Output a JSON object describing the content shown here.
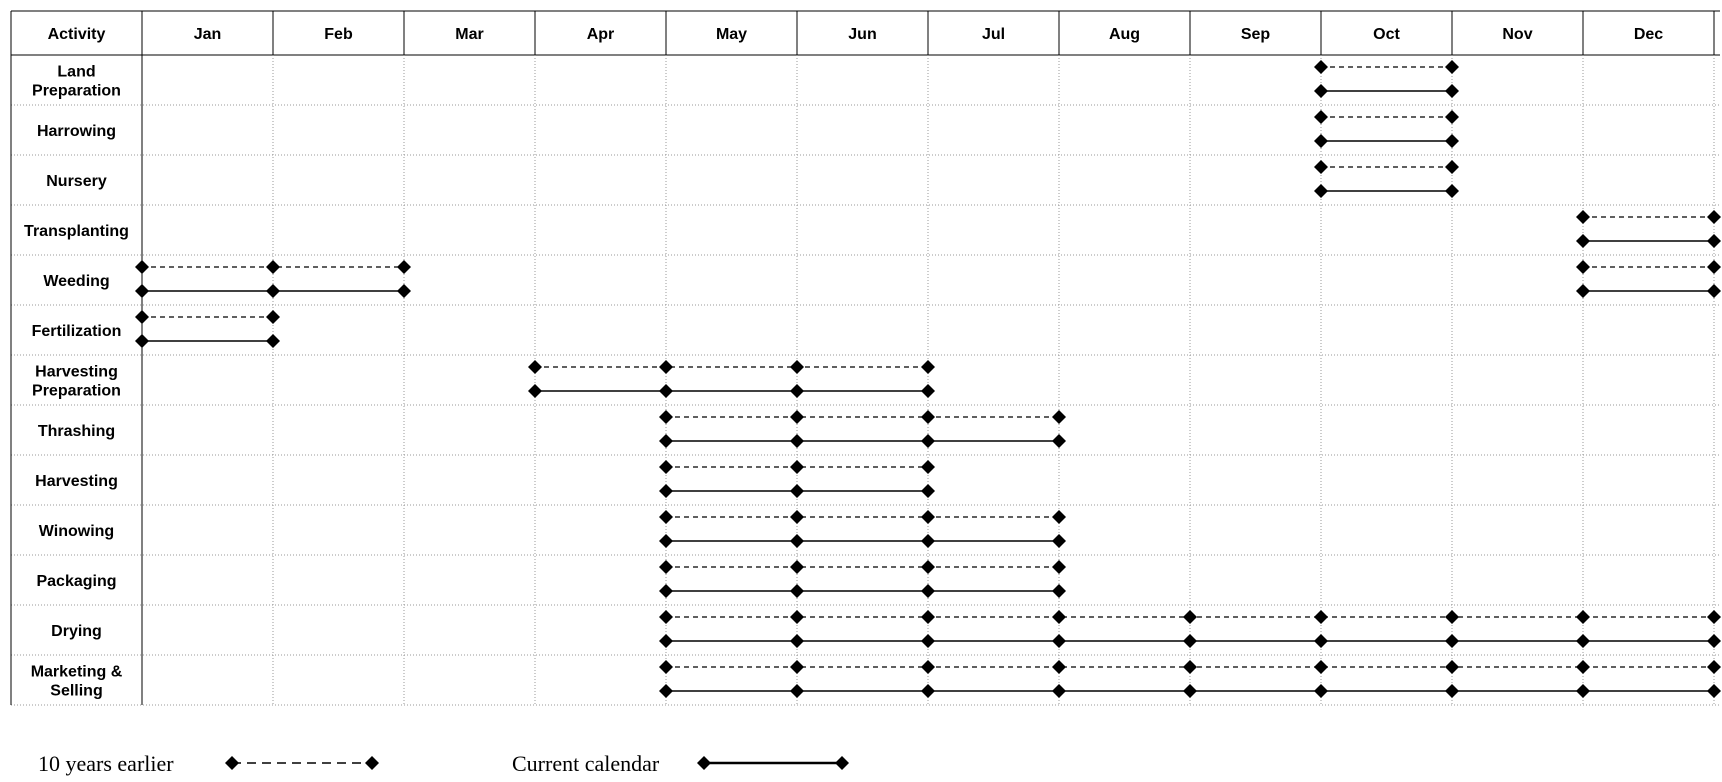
{
  "header": {
    "activity_label": "Activity",
    "months": [
      "Jan",
      "Feb",
      "Mar",
      "Apr",
      "May",
      "Jun",
      "Jul",
      "Aug",
      "Sep",
      "Oct",
      "Nov",
      "Dec"
    ]
  },
  "activities": [
    {
      "label": [
        "Land",
        "Preparation"
      ],
      "earlier": [
        [
          10,
          11
        ]
      ],
      "current": [
        [
          10,
          11
        ]
      ]
    },
    {
      "label": [
        "Harrowing"
      ],
      "earlier": [
        [
          10,
          11
        ]
      ],
      "current": [
        [
          10,
          11
        ]
      ]
    },
    {
      "label": [
        "Nursery"
      ],
      "earlier": [
        [
          10,
          11
        ]
      ],
      "current": [
        [
          10,
          11
        ]
      ]
    },
    {
      "label": [
        "Transplanting"
      ],
      "earlier": [
        [
          12,
          13
        ]
      ],
      "current": [
        [
          12,
          13
        ]
      ]
    },
    {
      "label": [
        "Weeding"
      ],
      "earlier": [
        [
          1,
          3
        ],
        [
          12,
          13
        ]
      ],
      "current": [
        [
          1,
          3
        ],
        [
          12,
          13
        ]
      ]
    },
    {
      "label": [
        "Fertilization"
      ],
      "earlier": [
        [
          1,
          2
        ]
      ],
      "current": [
        [
          1,
          2
        ]
      ]
    },
    {
      "label": [
        "Harvesting",
        "Preparation"
      ],
      "earlier": [
        [
          4,
          7
        ]
      ],
      "current": [
        [
          4,
          7
        ]
      ]
    },
    {
      "label": [
        "Thrashing"
      ],
      "earlier": [
        [
          5,
          8
        ]
      ],
      "current": [
        [
          5,
          8
        ]
      ]
    },
    {
      "label": [
        "Harvesting"
      ],
      "earlier": [
        [
          5,
          7
        ]
      ],
      "current": [
        [
          5,
          7
        ]
      ]
    },
    {
      "label": [
        "Winowing"
      ],
      "earlier": [
        [
          5,
          8
        ]
      ],
      "current": [
        [
          5,
          8
        ]
      ]
    },
    {
      "label": [
        "Packaging"
      ],
      "earlier": [
        [
          5,
          8
        ]
      ],
      "current": [
        [
          5,
          8
        ]
      ]
    },
    {
      "label": [
        "Drying"
      ],
      "earlier": [
        [
          5,
          13
        ]
      ],
      "current": [
        [
          5,
          13
        ]
      ]
    },
    {
      "label": [
        "Marketing &",
        "Selling"
      ],
      "earlier": [
        [
          5,
          13
        ]
      ],
      "current": [
        [
          5,
          13
        ]
      ]
    }
  ],
  "legend": {
    "earlier_label": "10 years earlier",
    "current_label": "Current calendar"
  }
}
